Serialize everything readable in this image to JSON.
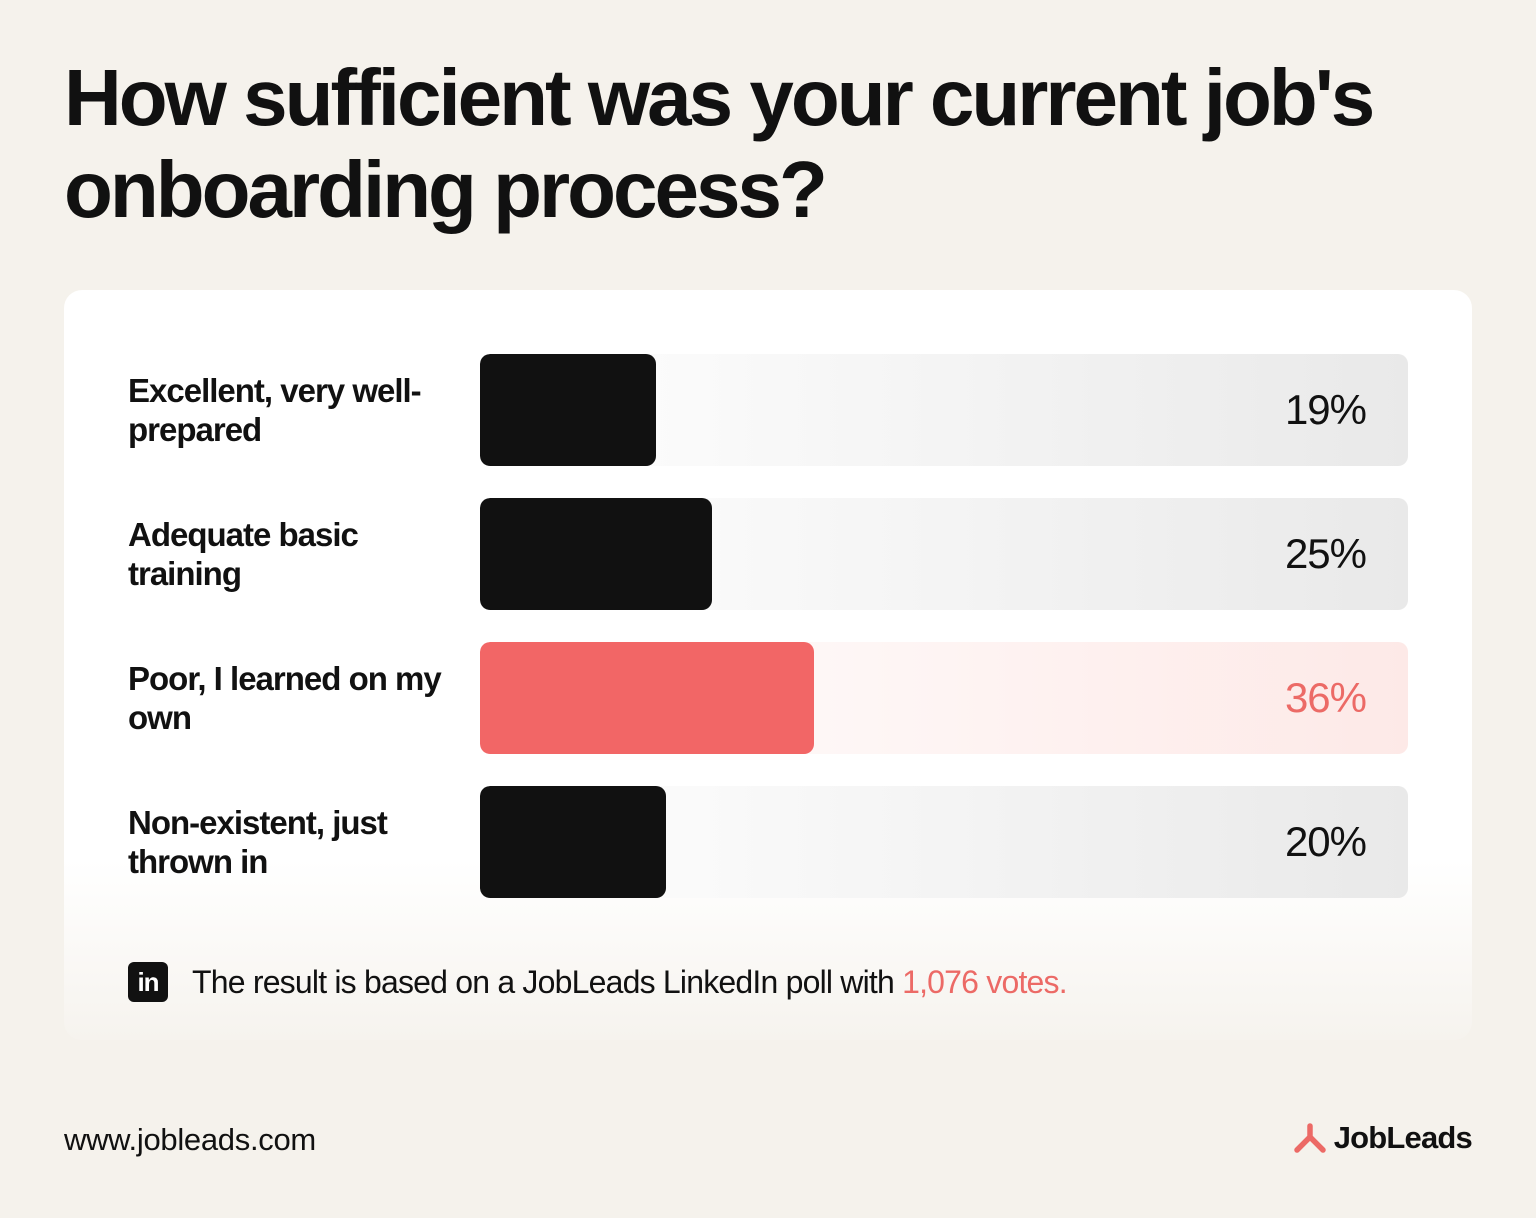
{
  "title": "How sufficient was your current job's onboarding process?",
  "chart_data": {
    "type": "bar",
    "orientation": "horizontal",
    "title": "How sufficient was your current job's onboarding process?",
    "categories": [
      "Excellent, very well-prepared",
      "Adequate basic training",
      "Poor, I learned on my own",
      "Non-existent, just thrown in"
    ],
    "values": [
      19,
      25,
      36,
      20
    ],
    "value_labels": [
      "19%",
      "25%",
      "36%",
      "20%"
    ],
    "unit": "%",
    "highlighted_index": 2,
    "xlim": [
      0,
      100
    ],
    "grid": false,
    "legend": "none"
  },
  "colors": {
    "bar": "#111111",
    "highlight": "#f26666",
    "highlight_text": "#ec6a66",
    "background": "#f5f2ec",
    "card": "#ffffff"
  },
  "note": {
    "icon": "linkedin-icon",
    "icon_text": "in",
    "text": "The result is based on a JobLeads LinkedIn poll with",
    "votes": "1,076 votes."
  },
  "footer": {
    "url": "www.jobleads.com",
    "brand": "JobLeads",
    "brand_icon": "jobleads-logo-icon"
  }
}
